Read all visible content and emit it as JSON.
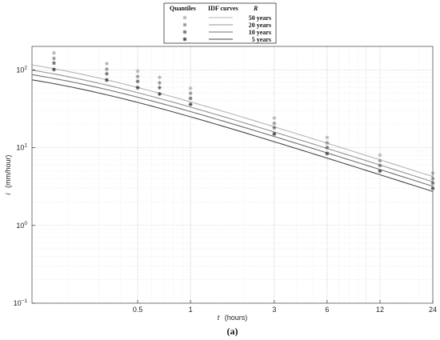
{
  "chart_data": {
    "type": "line",
    "caption": "(a)",
    "xlabel_var": "t",
    "xlabel_unit": "(hours)",
    "ylabel_var": "i",
    "ylabel_unit": "(mm/hour)",
    "x_scale": "log",
    "y_scale": "log",
    "xlim": [
      0.125,
      24
    ],
    "ylim": [
      0.1,
      200
    ],
    "x_ticks": [
      {
        "value": 0.5,
        "label": "0.5"
      },
      {
        "value": 1,
        "label": "1"
      },
      {
        "value": 3,
        "label": "3"
      },
      {
        "value": 6,
        "label": "6"
      },
      {
        "value": 12,
        "label": "12"
      },
      {
        "value": 24,
        "label": "24"
      }
    ],
    "y_ticks": [
      {
        "value": 0.1,
        "base": "10",
        "exp": "−1"
      },
      {
        "value": 1,
        "base": "10",
        "exp": "0"
      },
      {
        "value": 10,
        "base": "10",
        "exp": "1"
      },
      {
        "value": 100,
        "base": "10",
        "exp": "2"
      }
    ],
    "grid": true,
    "legend": {
      "placement": "top-center",
      "headers": [
        "Quantiles",
        "IDF curves",
        "R"
      ],
      "entries": [
        "50 years",
        "20 years",
        "10 years",
        "5 years"
      ]
    },
    "quantile_durations": [
      0.1667,
      0.3333,
      0.5,
      0.6667,
      1,
      3,
      6,
      12,
      24
    ],
    "series": [
      {
        "name": "50 years",
        "color": "#b5b5b5",
        "curve": {
          "a": 42,
          "b": 0.12,
          "n": 0.72,
          "x0": 0.125,
          "x1": 24
        },
        "quantiles": [
          165,
          120,
          96,
          80,
          58,
          24,
          13.5,
          8.0,
          4.7
        ]
      },
      {
        "name": "20 years",
        "color": "#939393",
        "curve": {
          "a": 36,
          "b": 0.12,
          "n": 0.72,
          "x0": 0.125,
          "x1": 24
        },
        "quantiles": [
          140,
          102,
          82,
          68,
          50,
          20.5,
          11.5,
          6.8,
          4.0
        ]
      },
      {
        "name": "10 years",
        "color": "#6f6f6f",
        "curve": {
          "a": 31.5,
          "b": 0.12,
          "n": 0.72,
          "x0": 0.125,
          "x1": 24
        },
        "quantiles": [
          122,
          89,
          71,
          59,
          43,
          18,
          10.0,
          5.9,
          3.5
        ]
      },
      {
        "name": "5 years",
        "color": "#474747",
        "curve": {
          "a": 27,
          "b": 0.12,
          "n": 0.72,
          "x0": 0.125,
          "x1": 24
        },
        "quantiles": [
          101,
          74,
          59,
          49,
          36,
          15,
          8.4,
          5.0,
          3.0
        ]
      }
    ]
  }
}
